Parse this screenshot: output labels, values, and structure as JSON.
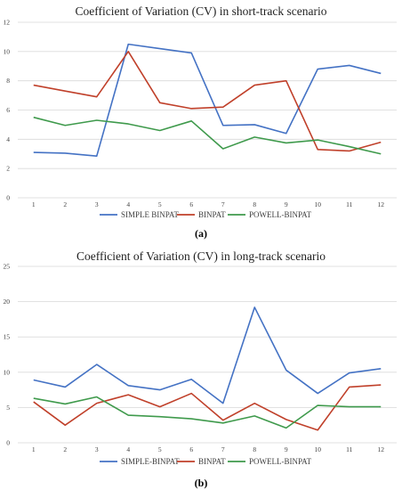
{
  "chart_data": [
    {
      "type": "line",
      "title": "Coefficient of Variation (CV) in short-track scenario",
      "panel_label": "(a)",
      "x": [
        "1",
        "2",
        "3",
        "4",
        "5",
        "6",
        "7",
        "8",
        "9",
        "10",
        "11",
        "12"
      ],
      "ylim": [
        0,
        12
      ],
      "yticks": [
        "0",
        "2",
        "4",
        "6",
        "8",
        "10",
        "12"
      ],
      "grid": true,
      "legend": "bottom",
      "series": [
        {
          "name": "SIMPLE BINPAT",
          "color": "#4472c4",
          "values": [
            3.1,
            3.05,
            2.85,
            10.5,
            10.2,
            9.9,
            4.95,
            5.0,
            4.4,
            8.8,
            9.05,
            8.5
          ]
        },
        {
          "name": "BINPAT",
          "color": "#c0402a",
          "values": [
            7.7,
            7.3,
            6.9,
            10.0,
            6.5,
            6.1,
            6.2,
            7.7,
            8.0,
            3.3,
            3.2,
            3.8
          ]
        },
        {
          "name": "POWELL-BINPAT",
          "color": "#3f9a4c",
          "values": [
            5.5,
            4.95,
            5.3,
            5.05,
            4.6,
            5.25,
            3.35,
            4.15,
            3.75,
            3.95,
            3.5,
            3.0
          ]
        }
      ]
    },
    {
      "type": "line",
      "title": "Coefficient of Variation (CV) in long-track scenario",
      "panel_label": "(b)",
      "x": [
        "1",
        "2",
        "3",
        "4",
        "5",
        "6",
        "7",
        "8",
        "9",
        "10",
        "11",
        "12"
      ],
      "ylim": [
        0,
        25
      ],
      "yticks": [
        "0",
        "5",
        "10",
        "15",
        "20",
        "25"
      ],
      "grid": true,
      "legend": "bottom",
      "series": [
        {
          "name": "SIMPLE-BINPAT",
          "color": "#4472c4",
          "values": [
            8.9,
            7.9,
            11.1,
            8.1,
            7.5,
            9.0,
            5.6,
            19.2,
            10.3,
            7.0,
            9.9,
            10.5
          ]
        },
        {
          "name": "BINPAT",
          "color": "#c0402a",
          "values": [
            5.8,
            2.5,
            5.6,
            6.8,
            5.1,
            7.0,
            3.2,
            5.6,
            3.3,
            1.8,
            7.9,
            8.2
          ]
        },
        {
          "name": "POWELL-BINPAT",
          "color": "#3f9a4c",
          "values": [
            6.3,
            5.5,
            6.5,
            3.9,
            3.7,
            3.4,
            2.8,
            3.8,
            2.1,
            5.3,
            5.1,
            5.1
          ]
        }
      ]
    }
  ]
}
